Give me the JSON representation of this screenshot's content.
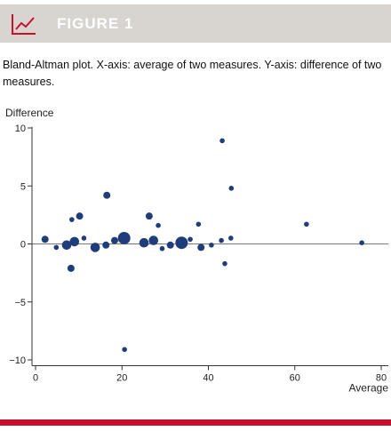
{
  "figure": {
    "label": "FIGURE 1",
    "caption": "Bland-Altman plot. X-axis: average of two measures. Y-axis: difference of two measures.",
    "icon": "line-chart-icon",
    "colors": {
      "header_bg": "#d8d4cf",
      "accent": "#c8102e",
      "points": "#1f3d7a"
    }
  },
  "chart_data": {
    "type": "scatter",
    "title": "",
    "xlabel": "Average",
    "ylabel": "Difference",
    "xlim": [
      -2,
      80
    ],
    "ylim": [
      -10.5,
      10
    ],
    "xticks": [
      0,
      20,
      40,
      60,
      80
    ],
    "yticks": [
      10,
      5,
      0,
      -5,
      -10
    ],
    "xtick_labels": [
      "0",
      "20",
      "40",
      "60",
      "80"
    ],
    "ytick_labels": [
      "10",
      "5",
      "0",
      "−5",
      "−10"
    ],
    "reference_line_y": 0,
    "grid": false,
    "legend": "none",
    "points": [
      {
        "x": 2.2,
        "y": 0.4,
        "size": 2
      },
      {
        "x": 4.8,
        "y": -0.3,
        "size": 1
      },
      {
        "x": 7.2,
        "y": -0.1,
        "size": 3
      },
      {
        "x": 8.2,
        "y": -2.1,
        "size": 2
      },
      {
        "x": 8.4,
        "y": 2.1,
        "size": 1
      },
      {
        "x": 9.0,
        "y": 0.2,
        "size": 3
      },
      {
        "x": 10.2,
        "y": 2.4,
        "size": 2
      },
      {
        "x": 11.2,
        "y": 0.5,
        "size": 1
      },
      {
        "x": 13.8,
        "y": -0.3,
        "size": 3
      },
      {
        "x": 16.3,
        "y": -0.1,
        "size": 2
      },
      {
        "x": 16.5,
        "y": 4.2,
        "size": 2
      },
      {
        "x": 18.3,
        "y": 0.3,
        "size": 2
      },
      {
        "x": 20.5,
        "y": 0.5,
        "size": 4
      },
      {
        "x": 20.6,
        "y": -9.1,
        "size": 1
      },
      {
        "x": 25.1,
        "y": 0.1,
        "size": 3
      },
      {
        "x": 26.3,
        "y": 2.4,
        "size": 2
      },
      {
        "x": 27.3,
        "y": 0.3,
        "size": 3
      },
      {
        "x": 28.4,
        "y": 1.6,
        "size": 1
      },
      {
        "x": 29.3,
        "y": -0.4,
        "size": 1
      },
      {
        "x": 31.2,
        "y": -0.1,
        "size": 2
      },
      {
        "x": 33.8,
        "y": 0.1,
        "size": 4
      },
      {
        "x": 35.8,
        "y": 0.4,
        "size": 1
      },
      {
        "x": 37.7,
        "y": 1.7,
        "size": 1
      },
      {
        "x": 38.3,
        "y": -0.3,
        "size": 2
      },
      {
        "x": 40.7,
        "y": -0.1,
        "size": 1
      },
      {
        "x": 43.0,
        "y": 0.3,
        "size": 1
      },
      {
        "x": 43.2,
        "y": 8.9,
        "size": 1
      },
      {
        "x": 43.8,
        "y": -1.7,
        "size": 1
      },
      {
        "x": 45.2,
        "y": 0.5,
        "size": 1
      },
      {
        "x": 45.3,
        "y": 4.8,
        "size": 1
      },
      {
        "x": 62.7,
        "y": 1.7,
        "size": 1
      },
      {
        "x": 75.5,
        "y": 0.1,
        "size": 1
      }
    ]
  }
}
